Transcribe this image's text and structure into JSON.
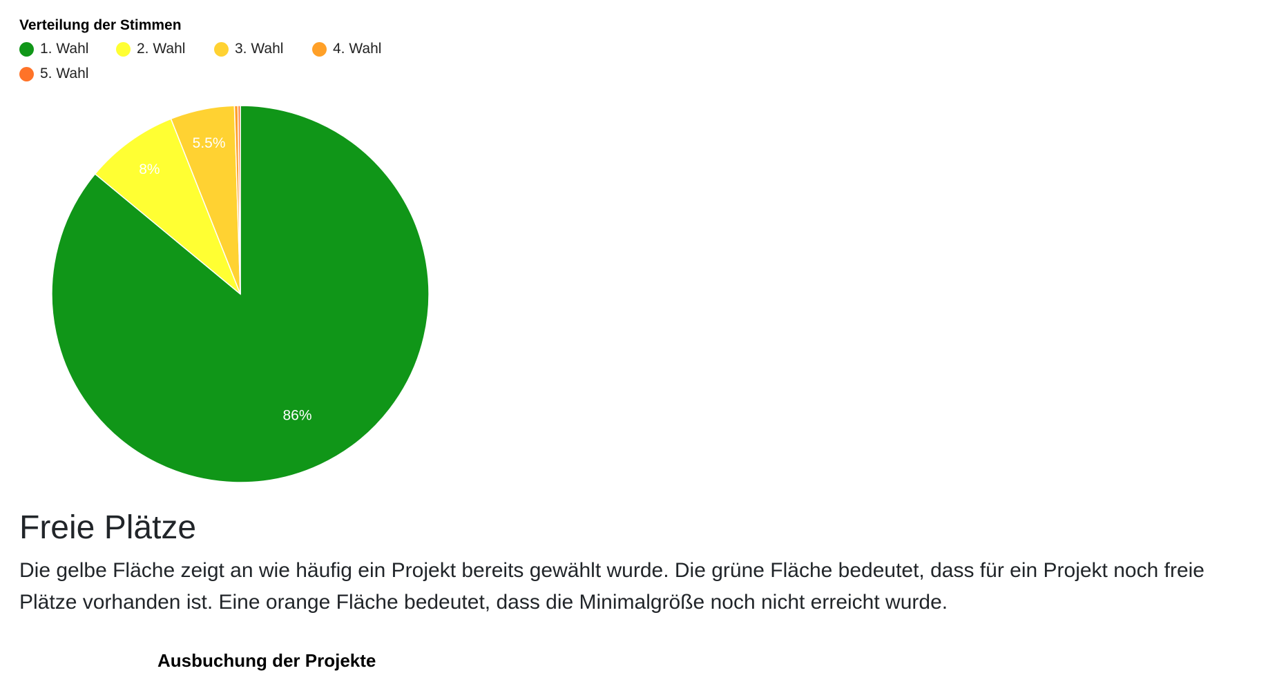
{
  "chart_data": {
    "type": "pie",
    "title": "Verteilung der Stimmen",
    "legend_position": "top-left",
    "slices": [
      {
        "label": "1. Wahl",
        "value": 86,
        "value_label": "86%",
        "color": "#109618"
      },
      {
        "label": "2. Wahl",
        "value": 8,
        "value_label": "8%",
        "color": "#ffff33"
      },
      {
        "label": "3. Wahl",
        "value": 5.5,
        "value_label": "5.5%",
        "color": "#ffd232"
      },
      {
        "label": "4. Wahl",
        "value": 0.3,
        "value_label": "",
        "color": "#ffa028"
      },
      {
        "label": "5. Wahl",
        "value": 0.2,
        "value_label": "",
        "color": "#ff7328"
      }
    ]
  },
  "section": {
    "heading": "Freie Plätze",
    "text": "Die gelbe Fläche zeigt an wie häufig ein Projekt bereits gewählt wurde. Die grüne Fläche bedeutet, dass für ein Projekt noch freie Plätze vorhanden ist. Eine orange Fläche bedeutet, dass die Minimalgröße noch nicht erreicht wurde."
  },
  "next_chart": {
    "title": "Ausbuchung der Projekte"
  }
}
